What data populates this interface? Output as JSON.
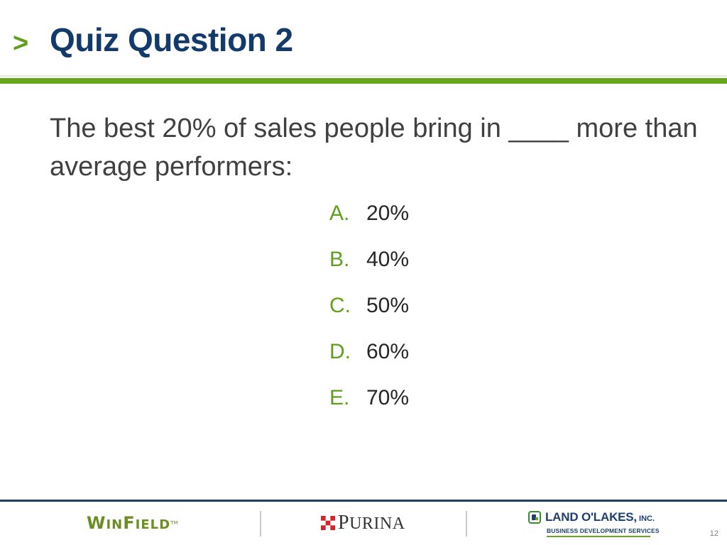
{
  "slide": {
    "title_marker": ">",
    "title": "Quiz Question 2",
    "question": "The best 20% of sales people bring in ____ more than average performers:",
    "answers": [
      {
        "letter": "A.",
        "text": "20%"
      },
      {
        "letter": "B.",
        "text": "40%"
      },
      {
        "letter": "C.",
        "text": "50%"
      },
      {
        "letter": "D.",
        "text": "60%"
      },
      {
        "letter": "E.",
        "text": "70%"
      }
    ],
    "page_number": "12"
  },
  "footer": {
    "logos": [
      {
        "name": "WinField"
      },
      {
        "name": "Purina"
      },
      {
        "name": "Land O'Lakes, Inc.",
        "tagline": "Business Development Services"
      }
    ]
  },
  "colors": {
    "title": "#123a6b",
    "accent_green": "#6aa520",
    "answer_letter": "#5f9f1c",
    "body_text": "#404040",
    "footer_rule": "#1d3f66"
  }
}
